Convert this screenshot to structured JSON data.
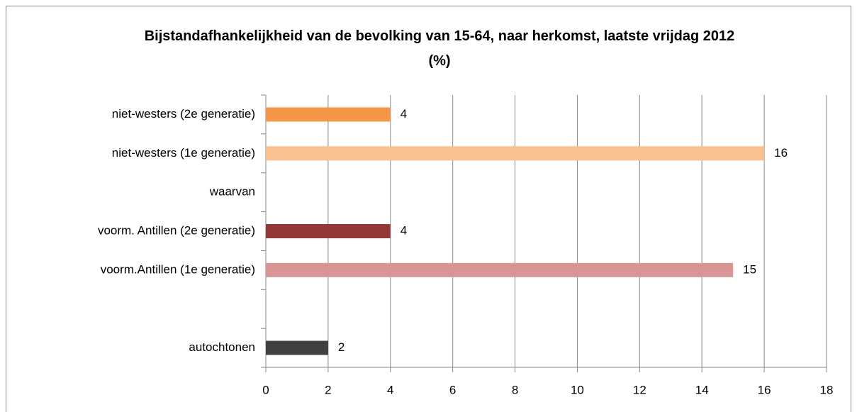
{
  "chart_data": {
    "type": "hbar",
    "title": "Bijstandafhankelijkheid van de bevolking van 15-64, naar herkomst, laatste vrijdag 2012 (%)",
    "categories": [
      "niet-westers (2e generatie)",
      "niet-westers (1e generatie)",
      "waarvan",
      "voorm. Antillen (2e generatie)",
      "voorm.Antillen (1e generatie)",
      null,
      "autochtonen"
    ],
    "values": [
      4,
      16,
      null,
      4,
      15,
      null,
      2
    ],
    "colors": [
      "#f79646",
      "#fac090",
      null,
      "#953735",
      "#d99694",
      null,
      "#404040"
    ],
    "xlim": [
      0,
      18
    ],
    "xticks": [
      0,
      2,
      4,
      6,
      8,
      10,
      12,
      14,
      16,
      18
    ],
    "grid": true
  }
}
